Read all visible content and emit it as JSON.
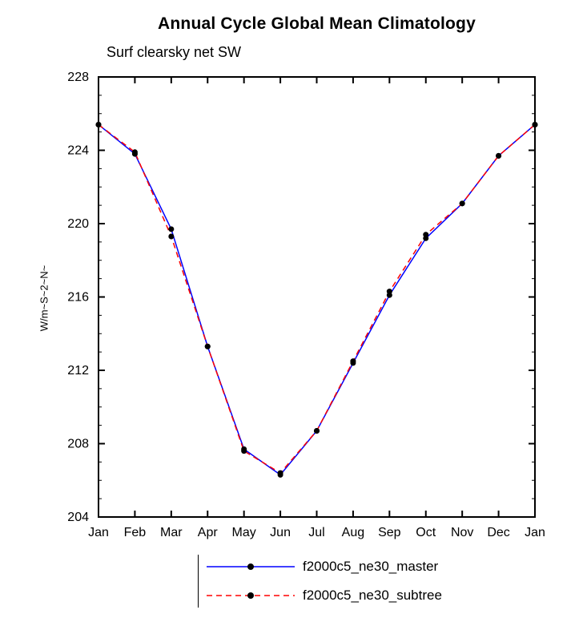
{
  "chart_data": {
    "type": "line",
    "title": "Annual Cycle Global Mean Climatology",
    "subtitle": "Surf clearsky net SW",
    "ylabel": "W/m~S~2~N~",
    "xlabel": "",
    "categories": [
      "Jan",
      "Feb",
      "Mar",
      "Apr",
      "May",
      "Jun",
      "Jul",
      "Aug",
      "Sep",
      "Oct",
      "Nov",
      "Dec",
      "Jan"
    ],
    "ylim": [
      204,
      228
    ],
    "yticks": [
      204,
      208,
      212,
      216,
      220,
      224,
      228
    ],
    "y_minor_step": 1,
    "grid": false,
    "legend_position": "bottom",
    "axis_color": "#000000",
    "marker_color": "#000000",
    "series": [
      {
        "name": "f2000c5_ne30_master",
        "color": "#0000ff",
        "line_style": "solid",
        "marker": "circle",
        "marker_color": "#000000",
        "values": [
          225.4,
          223.8,
          219.7,
          213.3,
          207.7,
          206.3,
          208.7,
          212.4,
          216.1,
          219.2,
          221.1,
          223.7,
          225.4
        ]
      },
      {
        "name": "f2000c5_ne30_subtree",
        "color": "#ff0000",
        "line_style": "dashed",
        "marker": "circle",
        "marker_color": "#000000",
        "values": [
          225.4,
          223.9,
          219.3,
          213.3,
          207.6,
          206.4,
          208.7,
          212.5,
          216.3,
          219.4,
          221.1,
          223.7,
          225.4
        ]
      }
    ]
  }
}
